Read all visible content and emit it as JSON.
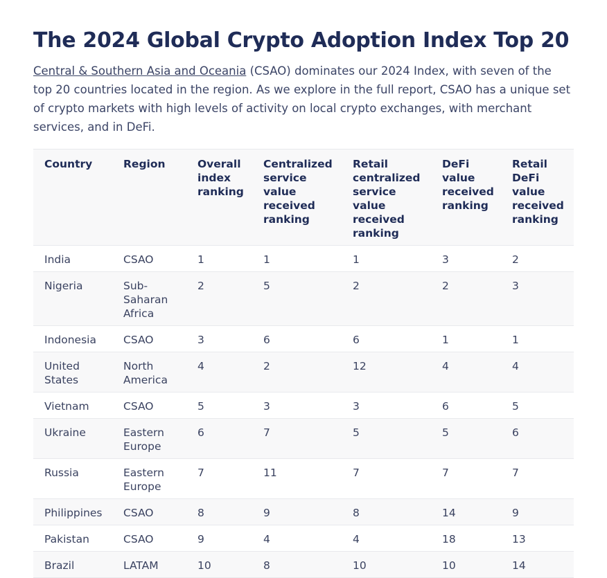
{
  "title": "The 2024 Global Crypto Adoption Index Top 20",
  "intro": {
    "link_text": "Central & Southern Asia and Oceania",
    "rest": " (CSAO) dominates our 2024 Index, with seven of the top 20 countries located in the region. As we explore in the full report, CSAO has a unique set of crypto markets with high levels of activity on local crypto exchanges, with merchant services, and in DeFi."
  },
  "table": {
    "headers": [
      "Country",
      "Region",
      "Overall index ranking",
      "Centralized service value received ranking",
      "Retail centralized service value received ranking",
      "DeFi value received ranking",
      "Retail DeFi value received ranking"
    ],
    "rows": [
      [
        "India",
        "CSAO",
        "1",
        "1",
        "1",
        "3",
        "2"
      ],
      [
        "Nigeria",
        "Sub-Saharan Africa",
        "2",
        "5",
        "2",
        "2",
        "3"
      ],
      [
        "Indonesia",
        "CSAO",
        "3",
        "6",
        "6",
        "1",
        "1"
      ],
      [
        "United States",
        "North America",
        "4",
        "2",
        "12",
        "4",
        "4"
      ],
      [
        "Vietnam",
        "CSAO",
        "5",
        "3",
        "3",
        "6",
        "5"
      ],
      [
        "Ukraine",
        "Eastern Europe",
        "6",
        "7",
        "5",
        "5",
        "6"
      ],
      [
        "Russia",
        "Eastern Europe",
        "7",
        "11",
        "7",
        "7",
        "7"
      ],
      [
        "Philippines",
        "CSAO",
        "8",
        "9",
        "8",
        "14",
        "9"
      ],
      [
        "Pakistan",
        "CSAO",
        "9",
        "4",
        "4",
        "18",
        "13"
      ],
      [
        "Brazil",
        "LATAM",
        "10",
        "8",
        "10",
        "10",
        "14"
      ]
    ]
  }
}
